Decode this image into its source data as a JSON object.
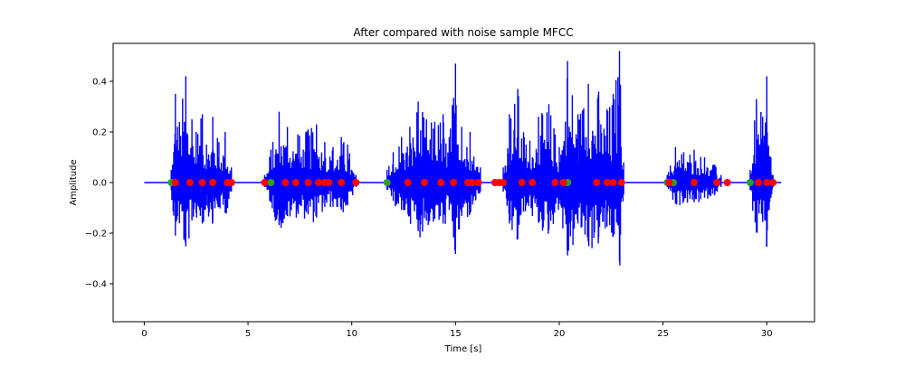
{
  "chart_data": {
    "type": "line",
    "title": "After compared with noise sample MFCC",
    "xlabel": "Time [s]",
    "ylabel": "Amplitude",
    "xlim": [
      -1.5,
      32.3
    ],
    "ylim": [
      -0.55,
      0.55
    ],
    "xticks": [
      0,
      5,
      10,
      15,
      20,
      25,
      30
    ],
    "xtick_labels": [
      "0",
      "5",
      "10",
      "15",
      "20",
      "25",
      "30"
    ],
    "yticks": [
      -0.4,
      -0.2,
      0.0,
      0.2,
      0.4
    ],
    "ytick_labels": [
      "−0.4",
      "−0.2",
      "0.0",
      "0.2",
      "0.4"
    ],
    "grid": false,
    "legend": "none",
    "colors": {
      "waveform": "#0000ff",
      "green_markers": "#2ca02c",
      "red_markers": "#ff0000"
    },
    "segments": [
      {
        "start": 1.3,
        "end": 4.2,
        "env": [
          [
            1.3,
            0.05
          ],
          [
            1.5,
            0.35
          ],
          [
            1.6,
            0.22
          ],
          [
            2.0,
            0.42
          ],
          [
            2.3,
            0.25
          ],
          [
            2.5,
            0.2
          ],
          [
            2.8,
            0.27
          ],
          [
            3.0,
            0.15
          ],
          [
            3.3,
            0.26
          ],
          [
            3.6,
            0.16
          ],
          [
            3.9,
            0.2
          ],
          [
            4.2,
            0.06
          ]
        ]
      },
      {
        "start": 5.8,
        "end": 10.2,
        "env": [
          [
            5.8,
            0.03
          ],
          [
            6.1,
            0.13
          ],
          [
            6.5,
            0.28
          ],
          [
            6.9,
            0.22
          ],
          [
            7.4,
            0.19
          ],
          [
            7.9,
            0.21
          ],
          [
            8.3,
            0.23
          ],
          [
            8.7,
            0.16
          ],
          [
            9.1,
            0.14
          ],
          [
            9.5,
            0.18
          ],
          [
            9.8,
            0.15
          ],
          [
            10.2,
            0.03
          ]
        ]
      },
      {
        "start": 11.7,
        "end": 16.2,
        "env": [
          [
            11.7,
            0.05
          ],
          [
            12.0,
            0.12
          ],
          [
            12.4,
            0.18
          ],
          [
            12.8,
            0.22
          ],
          [
            13.2,
            0.32
          ],
          [
            13.6,
            0.25
          ],
          [
            14.0,
            0.24
          ],
          [
            14.4,
            0.27
          ],
          [
            14.7,
            0.18
          ],
          [
            15.0,
            0.47
          ],
          [
            15.3,
            0.22
          ],
          [
            15.7,
            0.2
          ],
          [
            16.2,
            0.06
          ]
        ]
      },
      {
        "start": 17.3,
        "end": 23.1,
        "env": [
          [
            17.3,
            0.06
          ],
          [
            17.6,
            0.27
          ],
          [
            18.0,
            0.37
          ],
          [
            18.4,
            0.15
          ],
          [
            19.0,
            0.26
          ],
          [
            19.5,
            0.31
          ],
          [
            20.0,
            0.14
          ],
          [
            20.4,
            0.48
          ],
          [
            20.9,
            0.27
          ],
          [
            21.4,
            0.39
          ],
          [
            21.9,
            0.36
          ],
          [
            22.3,
            0.29
          ],
          [
            22.6,
            0.35
          ],
          [
            22.9,
            0.52
          ],
          [
            23.1,
            0.08
          ]
        ]
      },
      {
        "start": 25.2,
        "end": 27.8,
        "env": [
          [
            25.2,
            0.03
          ],
          [
            25.6,
            0.14
          ],
          [
            26.0,
            0.12
          ],
          [
            26.5,
            0.13
          ],
          [
            27.0,
            0.1
          ],
          [
            27.5,
            0.07
          ],
          [
            27.8,
            0.03
          ]
        ]
      },
      {
        "start": 29.2,
        "end": 30.3,
        "env": [
          [
            29.2,
            0.05
          ],
          [
            29.5,
            0.33
          ],
          [
            29.8,
            0.26
          ],
          [
            30.0,
            0.42
          ],
          [
            30.2,
            0.1
          ],
          [
            30.3,
            0.03
          ]
        ]
      }
    ],
    "green_markers_x": [
      1.3,
      6.1,
      11.7,
      17.3,
      20.4,
      25.2,
      25.5,
      29.2
    ],
    "red_markers_x": [
      1.5,
      2.2,
      2.8,
      3.3,
      4.0,
      4.2,
      5.8,
      6.8,
      7.3,
      7.9,
      8.4,
      8.7,
      8.9,
      9.5,
      10.2,
      12.7,
      13.5,
      14.3,
      14.9,
      15.6,
      15.8,
      16.1,
      16.9,
      17.1,
      17.3,
      18.2,
      18.7,
      19.8,
      20.2,
      21.8,
      22.3,
      22.6,
      23.0,
      25.3,
      26.5,
      27.6,
      28.1,
      29.6,
      30.0,
      30.3
    ]
  }
}
